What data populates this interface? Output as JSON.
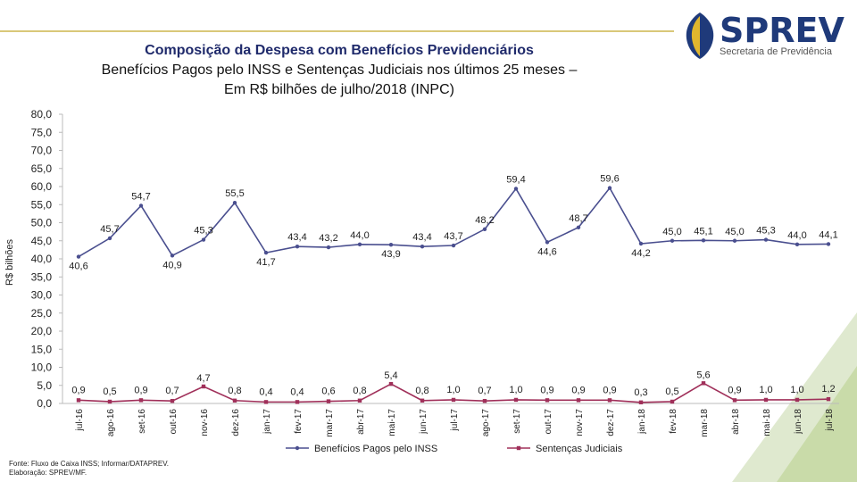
{
  "header": {
    "title_line1": "Composição da Despesa com Benefícios Previdenciários",
    "title_line2": "Benefícios Pagos pelo INSS e Sentenças Judiciais nos últimos 25 meses –",
    "title_line3": "Em R$ bilhões de julho/2018 (INPC)"
  },
  "logo": {
    "brand": "SPREV",
    "subtitle": "Secretaria de Previdência"
  },
  "footer": {
    "source": "Fonte: Fluxo de Caixa INSS; Informar/DATAPREV.",
    "elaboration": "Elaboração: SPREV/MF."
  },
  "chart_data": {
    "type": "line",
    "title": "Composição da Despesa com Benefícios Previdenciários",
    "ylabel": "R$ bilhões",
    "xlabel": "",
    "ylim": [
      0,
      80
    ],
    "yticks": [
      "0,0",
      "5,0",
      "10,0",
      "15,0",
      "20,0",
      "25,0",
      "30,0",
      "35,0",
      "40,0",
      "45,0",
      "50,0",
      "55,0",
      "60,0",
      "65,0",
      "70,0",
      "75,0",
      "80,0"
    ],
    "categories": [
      "jul-16",
      "ago-16",
      "set-16",
      "out-16",
      "nov-16",
      "dez-16",
      "jan-17",
      "fev-17",
      "mar-17",
      "abr-17",
      "mai-17",
      "jun-17",
      "jul-17",
      "ago-17",
      "set-17",
      "out-17",
      "nov-17",
      "dez-17",
      "jan-18",
      "fev-18",
      "mar-18",
      "abr-18",
      "mai-18",
      "jun-18",
      "jul-18"
    ],
    "legend_position": "bottom",
    "series": [
      {
        "name": "Benefícios Pagos pelo INSS",
        "color": "#4a4f8f",
        "values": [
          40.6,
          45.7,
          54.7,
          40.9,
          45.3,
          55.5,
          41.7,
          43.4,
          43.2,
          44.0,
          43.9,
          43.4,
          43.7,
          48.2,
          59.4,
          44.6,
          48.7,
          59.6,
          44.2,
          45.0,
          45.1,
          45.0,
          45.3,
          44.0,
          44.1
        ],
        "labels": [
          "40,6",
          "45,7",
          "54,7",
          "40,9",
          "45,3",
          "55,5",
          "41,7",
          "43,4",
          "43,2",
          "44,0",
          "43,9",
          "43,4",
          "43,7",
          "48,2",
          "59,4",
          "44,6",
          "48,7",
          "59,6",
          "44,2",
          "45,0",
          "45,1",
          "45,0",
          "45,3",
          "44,0",
          "44,1"
        ]
      },
      {
        "name": "Sentenças Judiciais",
        "color": "#a0305a",
        "values": [
          0.9,
          0.5,
          0.9,
          0.7,
          4.7,
          0.8,
          0.4,
          0.4,
          0.6,
          0.8,
          5.4,
          0.8,
          1.0,
          0.7,
          1.0,
          0.9,
          0.9,
          0.9,
          0.3,
          0.5,
          5.6,
          0.9,
          1.0,
          1.0,
          1.2
        ],
        "labels": [
          "0,9",
          "0,5",
          "0,9",
          "0,7",
          "4,7",
          "0,8",
          "0,4",
          "0,4",
          "0,6",
          "0,8",
          "5,4",
          "0,8",
          "1,0",
          "0,7",
          "1,0",
          "0,9",
          "0,9",
          "0,9",
          "0,3",
          "0,5",
          "5,6",
          "0,9",
          "1,0",
          "1,0",
          "1,2"
        ]
      }
    ]
  }
}
